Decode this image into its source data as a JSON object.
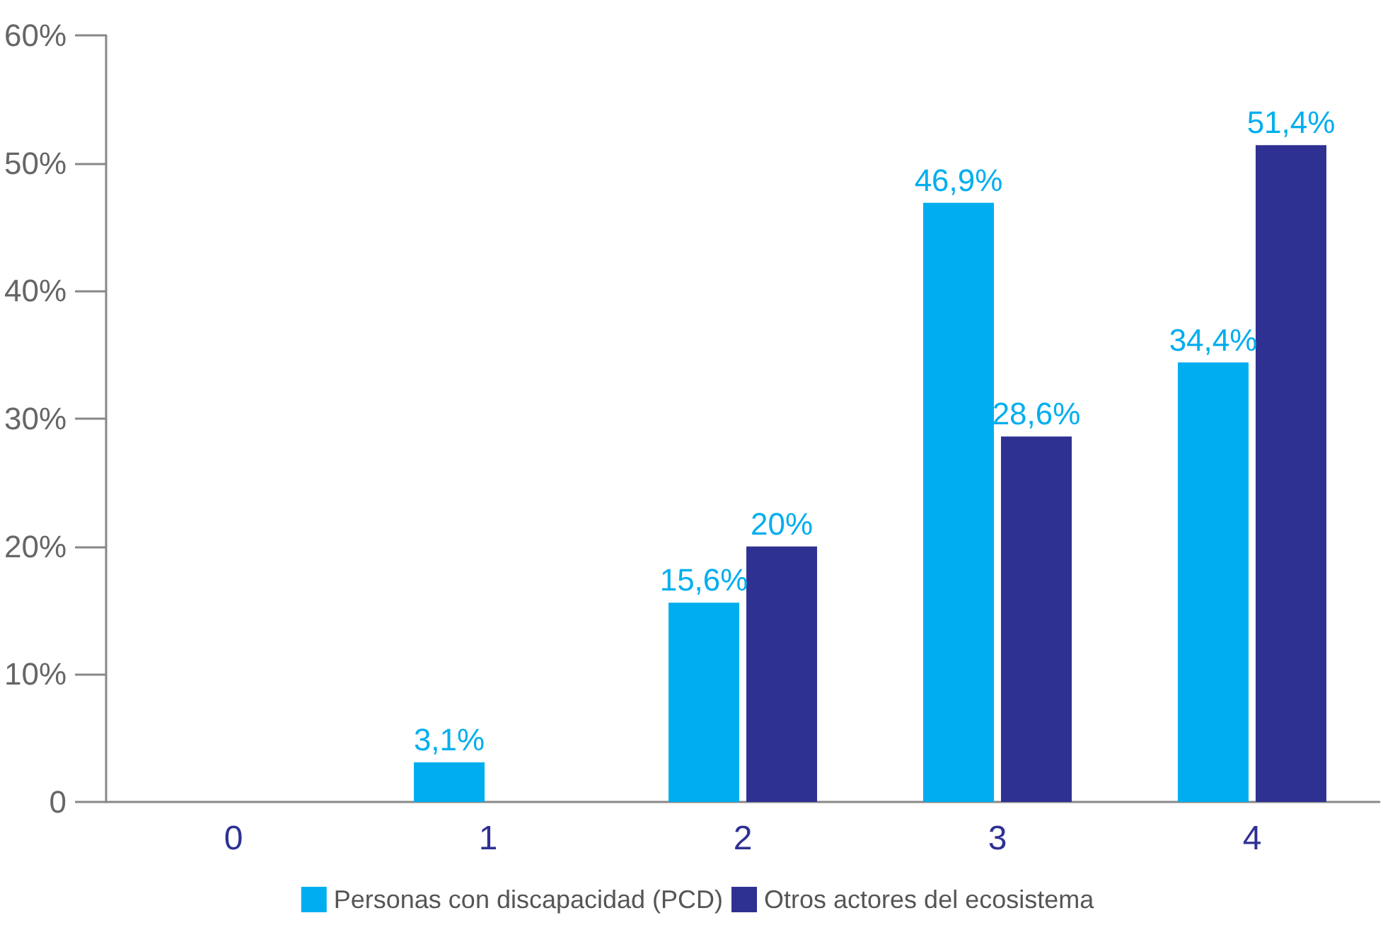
{
  "chart_data": {
    "type": "bar",
    "categories": [
      "0",
      "1",
      "2",
      "3",
      "4"
    ],
    "series": [
      {
        "name": "Personas con discapacidad (PCD)",
        "color": "#00aeef",
        "values": [
          0,
          3.1,
          15.6,
          46.9,
          34.4
        ],
        "value_labels": [
          null,
          "3,1%",
          "15,6%",
          "46,9%",
          "34,4%"
        ]
      },
      {
        "name": "Otros actores del ecosistema",
        "color": "#2e3192",
        "values": [
          0,
          0,
          20,
          28.6,
          51.4
        ],
        "value_labels": [
          null,
          null,
          "20%",
          "28,6%",
          "51,4%"
        ]
      }
    ],
    "ylim": [
      0,
      60
    ],
    "yticks": [
      0,
      {
        "value": 10,
        "label": "10%"
      },
      {
        "value": 20,
        "label": "20%"
      },
      {
        "value": 30,
        "label": "30%"
      },
      {
        "value": 40,
        "label": "40%"
      },
      {
        "value": 50,
        "label": "50%"
      },
      {
        "value": 60,
        "label": "60%"
      }
    ],
    "grid": false,
    "legend": "bottom"
  }
}
